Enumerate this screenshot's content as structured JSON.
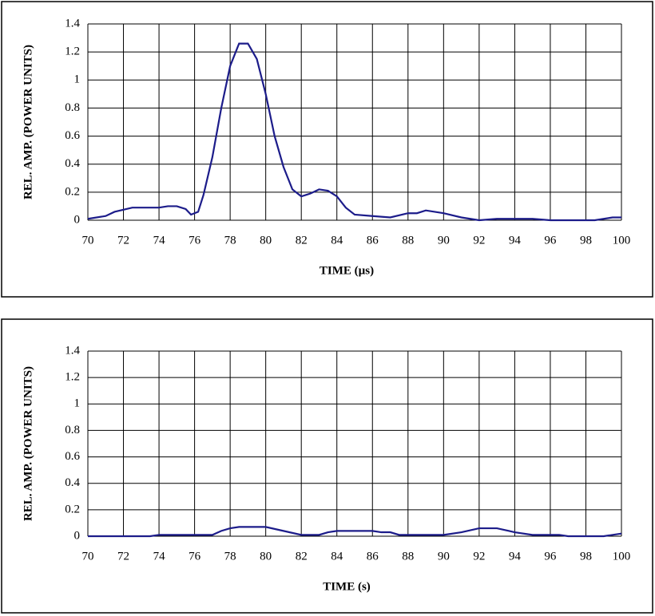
{
  "chart_data": [
    {
      "type": "line",
      "x_label": "TIME (µs)",
      "y_label": "REL. AMP. (POWER UNITS)",
      "grid": true,
      "xlim": [
        70,
        100
      ],
      "xticks": [
        70,
        72,
        74,
        76,
        78,
        80,
        82,
        84,
        86,
        88,
        90,
        92,
        94,
        96,
        98,
        100
      ],
      "ylim": [
        0,
        1.4
      ],
      "yticks": [
        0,
        0.2,
        0.4,
        0.6,
        0.8,
        1,
        1.2,
        1.4
      ],
      "x": [
        70,
        71,
        71.5,
        72.5,
        74,
        74.5,
        75,
        75.5,
        75.8,
        76.2,
        76.5,
        77,
        77.5,
        78,
        78.5,
        79,
        79.5,
        80,
        80.5,
        81,
        81.5,
        82,
        82.5,
        83,
        83.5,
        84,
        84.5,
        85,
        86,
        87,
        88,
        88.5,
        89,
        90,
        91,
        92,
        93,
        95,
        96,
        98.5,
        99.5,
        100
      ],
      "series": [
        {
          "color": "#1c1c8a",
          "values": [
            0.01,
            0.03,
            0.06,
            0.09,
            0.09,
            0.1,
            0.1,
            0.08,
            0.04,
            0.06,
            0.18,
            0.45,
            0.8,
            1.1,
            1.26,
            1.26,
            1.15,
            0.9,
            0.6,
            0.38,
            0.22,
            0.17,
            0.19,
            0.22,
            0.21,
            0.17,
            0.09,
            0.04,
            0.03,
            0.02,
            0.05,
            0.05,
            0.07,
            0.05,
            0.02,
            0,
            0.01,
            0.01,
            0,
            0,
            0.02,
            0.02
          ]
        }
      ]
    },
    {
      "type": "line",
      "x_label": "TIME (s)",
      "y_label": "REL. AMP. (POWER UNITS)",
      "grid": true,
      "xlim": [
        70,
        100
      ],
      "xticks": [
        70,
        72,
        74,
        76,
        78,
        80,
        82,
        84,
        86,
        88,
        90,
        92,
        94,
        96,
        98,
        100
      ],
      "ylim": [
        0,
        1.4
      ],
      "yticks": [
        0,
        0.2,
        0.4,
        0.6,
        0.8,
        1,
        1.2,
        1.4
      ],
      "x": [
        70,
        73.5,
        74,
        77,
        77.5,
        78,
        78.5,
        80,
        81,
        82,
        83,
        83.5,
        84,
        86,
        86.5,
        87,
        87.5,
        90,
        91,
        92,
        93,
        94,
        95,
        96.5,
        97,
        99,
        100
      ],
      "series": [
        {
          "color": "#1c1c8a",
          "values": [
            0,
            0,
            0.01,
            0.01,
            0.04,
            0.06,
            0.07,
            0.07,
            0.04,
            0.01,
            0.01,
            0.03,
            0.04,
            0.04,
            0.03,
            0.03,
            0.01,
            0.01,
            0.03,
            0.06,
            0.06,
            0.03,
            0.01,
            0.01,
            0,
            0,
            0.02
          ]
        }
      ]
    }
  ]
}
